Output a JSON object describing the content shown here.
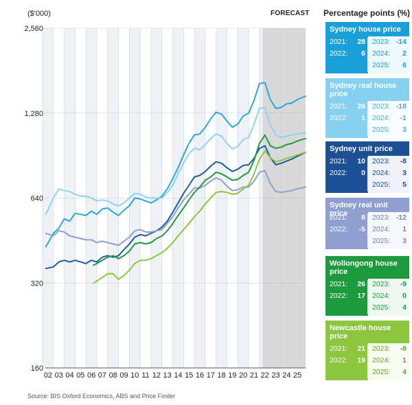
{
  "chart_data": {
    "type": "line",
    "unit_label": "($'000)",
    "forecast_label": "FORECAST",
    "y_scale": "log",
    "ylim": [
      160,
      2560
    ],
    "y_ticks": [
      "2,560",
      "1,280",
      "640",
      "320",
      "160"
    ],
    "y_tick_values": [
      2560,
      1280,
      640,
      320,
      160
    ],
    "x_ticks": [
      "02",
      "03",
      "04",
      "05",
      "06",
      "07",
      "08",
      "09",
      "10",
      "11",
      "12",
      "13",
      "14",
      "15",
      "16",
      "17",
      "18",
      "19",
      "20",
      "21",
      "22",
      "23",
      "24",
      "25"
    ],
    "xlim": [
      2001.75,
      2025.75
    ],
    "forecast_start": 2021.8,
    "series": [
      {
        "name": "Sydney house price",
        "color": "#2aa6dc",
        "x": [
          2001.8,
          2002.5,
          2003,
          2003.5,
          2004,
          2004.5,
          2005,
          2005.5,
          2006,
          2006.5,
          2007,
          2007.5,
          2008,
          2008.5,
          2009,
          2009.5,
          2010,
          2010.5,
          2011,
          2011.5,
          2012,
          2012.5,
          2013,
          2013.5,
          2014,
          2014.5,
          2015,
          2015.5,
          2016,
          2016.5,
          2017,
          2017.5,
          2018,
          2018.5,
          2019,
          2019.5,
          2020,
          2020.5,
          2021,
          2021.5,
          2022,
          2022.5,
          2023,
          2023.5,
          2024,
          2024.5,
          2025,
          2025.75
        ],
        "y": [
          430,
          480,
          500,
          540,
          530,
          565,
          560,
          555,
          575,
          560,
          585,
          590,
          570,
          555,
          580,
          600,
          640,
          635,
          625,
          615,
          630,
          650,
          690,
          750,
          820,
          910,
          1000,
          1070,
          1080,
          1140,
          1220,
          1290,
          1270,
          1200,
          1140,
          1170,
          1250,
          1280,
          1420,
          1630,
          1640,
          1430,
          1330,
          1340,
          1380,
          1390,
          1430,
          1470
        ]
      },
      {
        "name": "Sydney real house price",
        "color": "#8fd3f2",
        "x": [
          2001.8,
          2002.5,
          2003,
          2003.5,
          2004,
          2004.5,
          2005,
          2005.5,
          2006,
          2006.5,
          2007,
          2007.5,
          2008,
          2008.5,
          2009,
          2009.5,
          2010,
          2010.5,
          2011,
          2011.5,
          2012,
          2012.5,
          2013,
          2013.5,
          2014,
          2014.5,
          2015,
          2015.5,
          2016,
          2016.5,
          2017,
          2017.5,
          2018,
          2018.5,
          2019,
          2019.5,
          2020,
          2020.5,
          2021,
          2021.5,
          2022,
          2022.5,
          2023,
          2023.5,
          2024,
          2024.5,
          2025,
          2025.75
        ],
        "y": [
          560,
          640,
          690,
          680,
          675,
          660,
          650,
          650,
          640,
          625,
          630,
          625,
          610,
          600,
          615,
          640,
          665,
          660,
          645,
          640,
          640,
          640,
          670,
          710,
          780,
          850,
          920,
          960,
          950,
          990,
          1040,
          1080,
          1060,
          1000,
          955,
          975,
          1030,
          1050,
          1170,
          1330,
          1340,
          1160,
          1070,
          1050,
          1060,
          1070,
          1080,
          1090
        ]
      },
      {
        "name": "Sydney unit price",
        "color": "#1f5a9e",
        "x": [
          2001.8,
          2002.5,
          2003,
          2003.5,
          2004,
          2004.5,
          2005,
          2005.5,
          2006,
          2006.5,
          2007,
          2007.5,
          2008,
          2008.5,
          2009,
          2009.5,
          2010,
          2010.5,
          2011,
          2011.5,
          2012,
          2012.5,
          2013,
          2013.5,
          2014,
          2014.5,
          2015,
          2015.5,
          2016,
          2016.5,
          2017,
          2017.5,
          2018,
          2018.5,
          2019,
          2019.5,
          2020,
          2020.5,
          2021,
          2021.5,
          2022,
          2022.5,
          2023,
          2023.5,
          2024,
          2024.5,
          2025,
          2025.75
        ],
        "y": [
          360,
          365,
          380,
          385,
          380,
          385,
          380,
          375,
          385,
          380,
          395,
          400,
          395,
          400,
          420,
          440,
          465,
          475,
          470,
          480,
          490,
          505,
          530,
          570,
          615,
          665,
          710,
          760,
          770,
          795,
          830,
          860,
          850,
          820,
          795,
          810,
          835,
          840,
          885,
          960,
          980,
          890,
          840,
          850,
          865,
          880,
          900,
          930
        ]
      },
      {
        "name": "Sydney real unit price",
        "color": "#8fa0cf",
        "x": [
          2001.8,
          2002.5,
          2003,
          2003.5,
          2004,
          2004.5,
          2005,
          2005.5,
          2006,
          2006.5,
          2007,
          2007.5,
          2008,
          2008.5,
          2009,
          2009.5,
          2010,
          2010.5,
          2011,
          2011.5,
          2012,
          2012.5,
          2013,
          2013.5,
          2014,
          2014.5,
          2015,
          2015.5,
          2016,
          2016.5,
          2017,
          2017.5,
          2018,
          2018.5,
          2019,
          2019.5,
          2020,
          2020.5,
          2021,
          2021.5,
          2022,
          2022.5,
          2023,
          2023.5,
          2024,
          2024.5,
          2025,
          2025.75
        ],
        "y": [
          480,
          470,
          490,
          485,
          470,
          465,
          460,
          455,
          455,
          445,
          450,
          445,
          440,
          435,
          450,
          465,
          490,
          495,
          485,
          485,
          490,
          495,
          520,
          550,
          590,
          630,
          660,
          695,
          695,
          710,
          735,
          755,
          740,
          705,
          680,
          685,
          700,
          700,
          735,
          790,
          800,
          720,
          675,
          670,
          675,
          680,
          690,
          700
        ]
      },
      {
        "name": "Wollongong house price",
        "color": "#1e9a3e",
        "x": [
          2006.2,
          2006.5,
          2007,
          2007.5,
          2008,
          2008.5,
          2009,
          2009.5,
          2010,
          2010.5,
          2011,
          2011.5,
          2012,
          2012.5,
          2013,
          2013.5,
          2014,
          2014.5,
          2015,
          2015.5,
          2016,
          2016.5,
          2017,
          2017.5,
          2018,
          2018.5,
          2019,
          2019.5,
          2020,
          2020.5,
          2021,
          2021.5,
          2022,
          2022.5,
          2023,
          2023.5,
          2024,
          2024.5,
          2025,
          2025.75
        ],
        "y": [
          370,
          375,
          385,
          395,
          400,
          390,
          400,
          415,
          440,
          445,
          440,
          445,
          460,
          470,
          490,
          520,
          555,
          590,
          630,
          670,
          700,
          740,
          760,
          790,
          780,
          760,
          740,
          745,
          770,
          790,
          870,
          1000,
          1070,
          980,
          960,
          970,
          990,
          1000,
          1020,
          1040
        ]
      },
      {
        "name": "Newcastle house price",
        "color": "#8cc63f",
        "x": [
          2006.2,
          2006.5,
          2007,
          2007.5,
          2008,
          2008.5,
          2009,
          2009.5,
          2010,
          2010.5,
          2011,
          2011.5,
          2012,
          2012.5,
          2013,
          2013.5,
          2014,
          2014.5,
          2015,
          2015.5,
          2016,
          2016.5,
          2017,
          2017.5,
          2018,
          2018.5,
          2019,
          2019.5,
          2020,
          2020.5,
          2021,
          2021.5,
          2022,
          2022.5,
          2023,
          2023.5,
          2024,
          2024.5,
          2025,
          2025.75
        ],
        "y": [
          320,
          325,
          335,
          345,
          345,
          330,
          340,
          355,
          375,
          385,
          385,
          390,
          400,
          410,
          425,
          445,
          470,
          495,
          520,
          550,
          575,
          610,
          640,
          670,
          675,
          670,
          660,
          665,
          690,
          710,
          780,
          880,
          940,
          890,
          860,
          870,
          885,
          895,
          910,
          930
        ]
      }
    ]
  },
  "legend_panel": {
    "title": "Percentage points (%)",
    "cards": [
      {
        "title": "Sydney house price",
        "bg": "#1b9fd8",
        "fg": "#1b9fd8",
        "y2021": "2021:",
        "v2021": "28",
        "y2022": "2022:",
        "v2022": "6",
        "y2023": "2023:",
        "v2023": "-14",
        "y2024": "2024:",
        "v2024": "2",
        "y2025": "2025:",
        "v2025": "6"
      },
      {
        "title": "Sydney real house price",
        "bg": "#87d0f0",
        "fg": "#4aaad6",
        "y2021": "2021:",
        "v2021": "26",
        "y2022": "2022:",
        "v2022": "1",
        "y2023": "2023:",
        "v2023": "-18",
        "y2024": "2024:",
        "v2024": "-1",
        "y2025": "2025:",
        "v2025": "3"
      },
      {
        "title": "Sydney unit price",
        "bg": "#1d4f94",
        "fg": "#1d4f94",
        "y2021": "2021:",
        "v2021": "10",
        "y2022": "2022:",
        "v2022": "0",
        "y2023": "2023:",
        "v2023": "-8",
        "y2024": "2024:",
        "v2024": "3",
        "y2025": "2025:",
        "v2025": "5"
      },
      {
        "title": "Sydney real unit price",
        "bg": "#8e9fd0",
        "fg": "#6f82bc",
        "y2021": "2021:",
        "v2021": "8",
        "y2022": "2022:",
        "v2022": "-5",
        "y2023": "2023:",
        "v2023": "-12",
        "y2024": "2024:",
        "v2024": "1",
        "y2025": "2025:",
        "v2025": "3"
      },
      {
        "title": "Wollongong house price",
        "bg": "#1e9a3e",
        "fg": "#1e9a3e",
        "y2021": "2021:",
        "v2021": "26",
        "y2022": "2022:",
        "v2022": "17",
        "y2023": "2023:",
        "v2023": "-9",
        "y2024": "2024:",
        "v2024": "0",
        "y2025": "2025:",
        "v2025": "4"
      },
      {
        "title": "Newcastle house price",
        "bg": "#8cc63f",
        "fg": "#6aa32a",
        "y2021": "2021:",
        "v2021": "21",
        "y2022": "2022:",
        "v2022": "19",
        "y2023": "2023:",
        "v2023": "-8",
        "y2024": "2024:",
        "v2024": "1",
        "y2025": "2025:",
        "v2025": "4"
      }
    ]
  },
  "source": "Source: BIS Oxford Economics, ABS and Price Finder"
}
